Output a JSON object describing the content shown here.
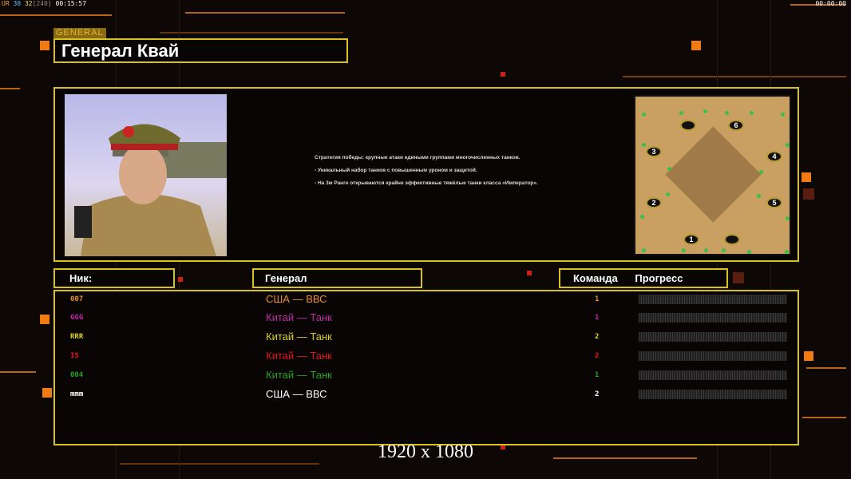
{
  "hud": {
    "prefix": "UR",
    "fps": "30",
    "val": "32",
    "bracket": "[240]",
    "time": "00:15:57",
    "clock": "00:00:00"
  },
  "general": {
    "tag": "GENERAL",
    "name": "Генерал Квай",
    "description": [
      "Стратегия победы: крупные атаки едиными группами многочисленных танков.",
      "- Уникальный набор танков с повышенным уроном и защитой.",
      "- На 3м Ранге открываются крайне эффективные тяжёлые танки класса «Император»."
    ]
  },
  "map": {
    "slots": [
      "1",
      "2",
      "3",
      "4",
      "5",
      "6"
    ]
  },
  "headers": {
    "nick": "Ник:",
    "general": "Генерал",
    "team": "Команда",
    "progress": "Прогресс"
  },
  "players": [
    {
      "nick": "007",
      "general": "США — ВВС",
      "team": "1",
      "progress": 0,
      "color": "#e8902a"
    },
    {
      "nick": "GGG",
      "general": "Китай — Танк",
      "team": "1",
      "progress": 0,
      "color": "#c02aa8"
    },
    {
      "nick": "RRR",
      "general": "Китай — Танк",
      "team": "2",
      "progress": 0,
      "color": "#d8d020"
    },
    {
      "nick": "IS",
      "general": "Китай — Танк",
      "team": "2",
      "progress": 0,
      "color": "#e01818"
    },
    {
      "nick": "004",
      "general": "Китай — Танк",
      "team": "1",
      "progress": 0,
      "color": "#28a020"
    },
    {
      "nick": "mmm",
      "general": "США — ВВС",
      "team": "2",
      "progress": 0,
      "color": "#ffffff"
    }
  ],
  "resolution": "1920 x 1080",
  "colors": {
    "accent": "#d9c21c",
    "orange": "#f27a12"
  }
}
